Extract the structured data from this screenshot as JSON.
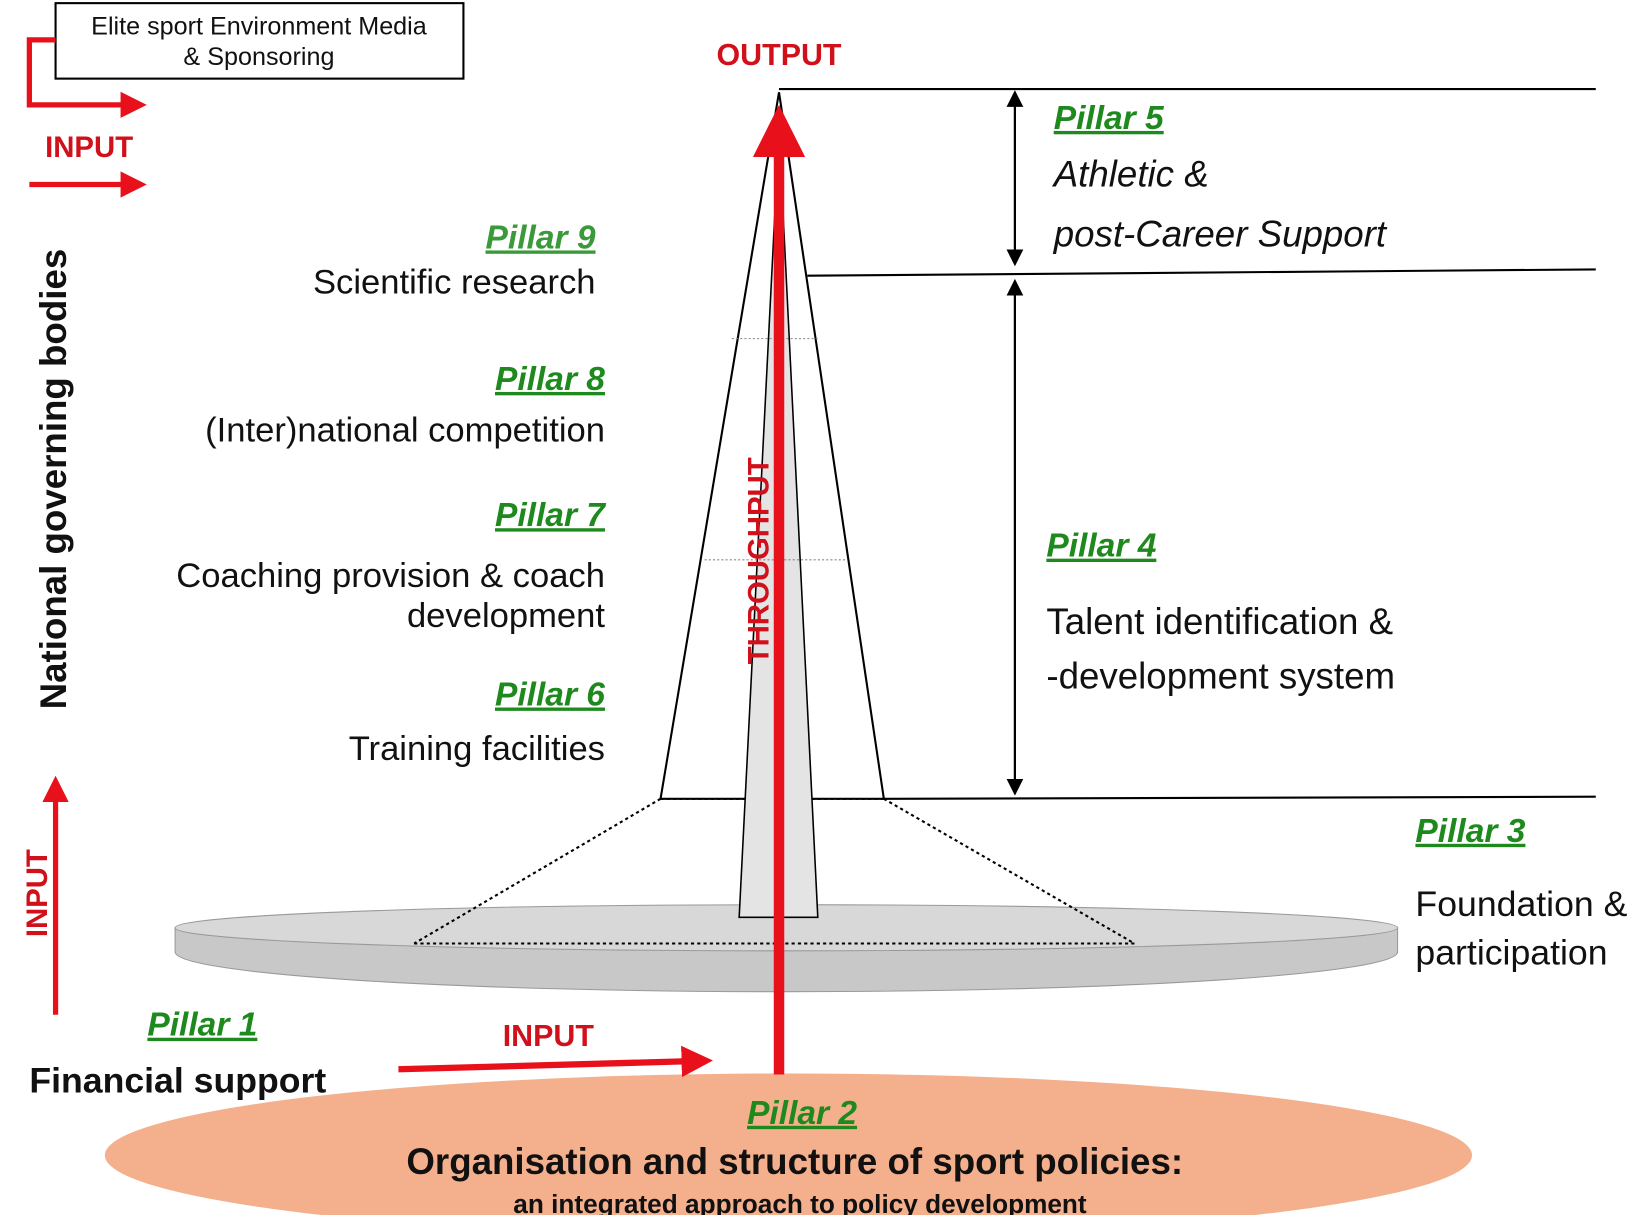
{
  "environment_box": {
    "line1": "Elite sport Environment Media",
    "line2": "& Sponsoring"
  },
  "labels": {
    "input_top": "INPUT",
    "input_left": "INPUT",
    "input_bottom": "INPUT",
    "output": "OUTPUT",
    "throughput": "THROUGHPUT",
    "national_governing_bodies": "National governing bodies"
  },
  "pillars": [
    {
      "title": "Pillar 1",
      "lines": [
        "Financial support"
      ]
    },
    {
      "title": "Pillar 2",
      "lines": [
        "Organisation and structure of sport policies:",
        "an integrated approach to policy development"
      ]
    },
    {
      "title": "Pillar 3",
      "lines": [
        "Foundation &",
        "participation"
      ]
    },
    {
      "title": "Pillar 4",
      "lines": [
        "Talent identification &",
        "-development system"
      ]
    },
    {
      "title": "Pillar 5",
      "lines": [
        "Athletic &",
        "post-Career Support"
      ]
    },
    {
      "title": "Pillar 6",
      "lines": [
        "Training facilities"
      ]
    },
    {
      "title": "Pillar 7",
      "lines": [
        "Coaching provision & coach",
        "development"
      ]
    },
    {
      "title": "Pillar 8",
      "lines": [
        "(Inter)national competition"
      ]
    },
    {
      "title": "Pillar 9",
      "lines": [
        "Scientific research"
      ]
    }
  ],
  "colors": {
    "arrow": "#e8101a",
    "pillar_title": "#1e8a1e",
    "base": "#f4b08c",
    "disc": "#d0d0d0"
  }
}
